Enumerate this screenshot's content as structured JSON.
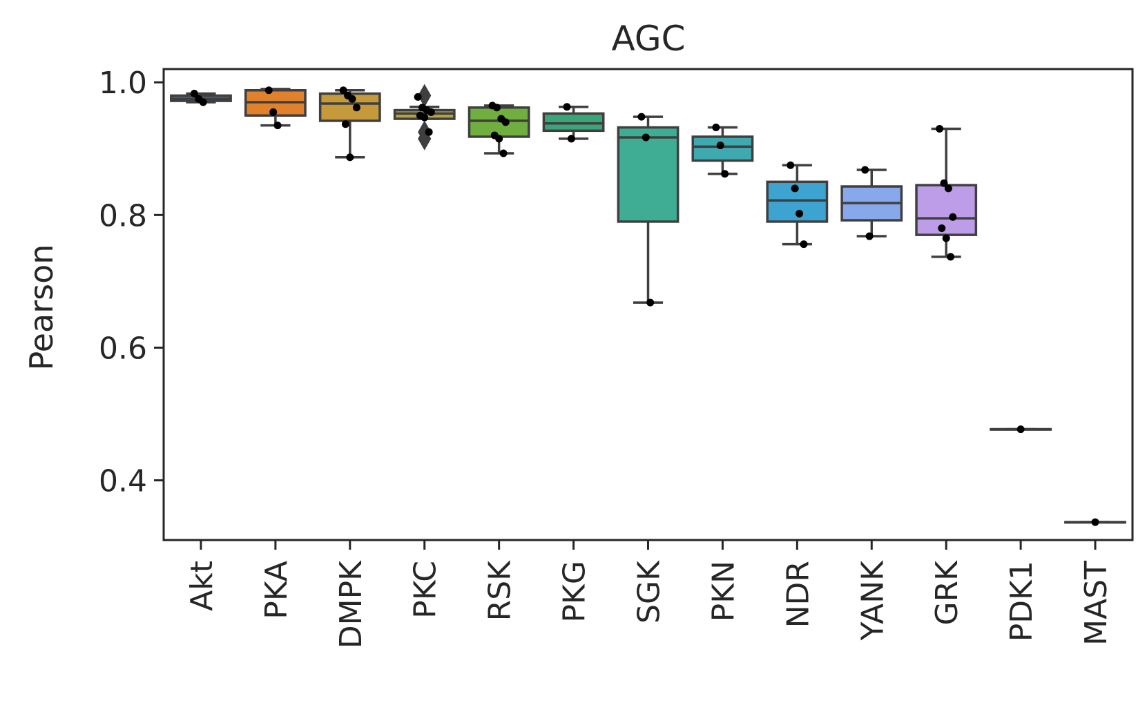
{
  "chart_data": {
    "type": "box",
    "title": "AGC",
    "xlabel": "",
    "ylabel": "Pearson",
    "ylim": [
      0.31,
      1.02
    ],
    "yticks": [
      0.4,
      0.6,
      0.8,
      1.0
    ],
    "ytick_labels": [
      "0.4",
      "0.6",
      "0.8",
      "1.0"
    ],
    "grid": false,
    "legend": "none",
    "categories": [
      "Akt",
      "PKA",
      "DMPK",
      "PKC",
      "RSK",
      "PKG",
      "SGK",
      "PKN",
      "NDR",
      "YANK",
      "GRK",
      "PDK1",
      "MAST"
    ],
    "boxes": [
      {
        "category": "Akt",
        "color": "#3274a1",
        "whisker_low": 0.97,
        "q1": 0.972,
        "median": 0.975,
        "q3": 0.98,
        "whisker_high": 0.983,
        "points": [
          0.983,
          0.975,
          0.97
        ],
        "outliers": []
      },
      {
        "category": "PKA",
        "color": "#e1812c",
        "whisker_low": 0.935,
        "q1": 0.95,
        "median": 0.97,
        "q3": 0.988,
        "whisker_high": 0.99,
        "points": [
          0.988,
          0.955,
          0.935
        ],
        "outliers": []
      },
      {
        "category": "DMPK",
        "color": "#c49a3b",
        "whisker_low": 0.887,
        "q1": 0.942,
        "median": 0.968,
        "q3": 0.983,
        "whisker_high": 0.988,
        "points": [
          0.988,
          0.98,
          0.975,
          0.962,
          0.937,
          0.887
        ],
        "outliers": []
      },
      {
        "category": "PKC",
        "color": "#b5a243",
        "whisker_low": 0.945,
        "q1": 0.945,
        "median": 0.953,
        "q3": 0.958,
        "whisker_high": 0.963,
        "points": [
          0.978,
          0.962,
          0.958,
          0.955,
          0.95,
          0.947,
          0.925
        ],
        "outliers": [
          0.98,
          0.925,
          0.915
        ]
      },
      {
        "category": "RSK",
        "color": "#6fae3f",
        "whisker_low": 0.893,
        "q1": 0.918,
        "median": 0.942,
        "q3": 0.962,
        "whisker_high": 0.965,
        "points": [
          0.965,
          0.962,
          0.945,
          0.94,
          0.92,
          0.915,
          0.893
        ],
        "outliers": []
      },
      {
        "category": "PKG",
        "color": "#3aa578",
        "whisker_low": 0.915,
        "q1": 0.927,
        "median": 0.938,
        "q3": 0.953,
        "whisker_high": 0.963,
        "points": [
          0.963,
          0.915
        ],
        "outliers": []
      },
      {
        "category": "SGK",
        "color": "#3fad93",
        "whisker_low": 0.668,
        "q1": 0.79,
        "median": 0.917,
        "q3": 0.932,
        "whisker_high": 0.948,
        "points": [
          0.948,
          0.917,
          0.668
        ],
        "outliers": []
      },
      {
        "category": "PKN",
        "color": "#3eaab0",
        "whisker_low": 0.862,
        "q1": 0.882,
        "median": 0.903,
        "q3": 0.918,
        "whisker_high": 0.932,
        "points": [
          0.932,
          0.905,
          0.862
        ],
        "outliers": []
      },
      {
        "category": "NDR",
        "color": "#3da3d0",
        "whisker_low": 0.756,
        "q1": 0.79,
        "median": 0.822,
        "q3": 0.85,
        "whisker_high": 0.875,
        "points": [
          0.875,
          0.84,
          0.802,
          0.756
        ],
        "outliers": []
      },
      {
        "category": "YANK",
        "color": "#87a8ea",
        "whisker_low": 0.768,
        "q1": 0.792,
        "median": 0.818,
        "q3": 0.843,
        "whisker_high": 0.868,
        "points": [
          0.868,
          0.768
        ],
        "outliers": []
      },
      {
        "category": "GRK",
        "color": "#bd9ce8",
        "whisker_low": 0.737,
        "q1": 0.77,
        "median": 0.795,
        "q3": 0.845,
        "whisker_high": 0.93,
        "points": [
          0.93,
          0.848,
          0.84,
          0.797,
          0.78,
          0.765,
          0.737
        ],
        "outliers": []
      },
      {
        "category": "PDK1",
        "color": "#e48fd8",
        "whisker_low": 0.477,
        "q1": 0.477,
        "median": 0.477,
        "q3": 0.477,
        "whisker_high": 0.477,
        "points": [
          0.477
        ],
        "outliers": []
      },
      {
        "category": "MAST",
        "color": "#e88fb8",
        "whisker_low": 0.337,
        "q1": 0.337,
        "median": 0.337,
        "q3": 0.337,
        "whisker_high": 0.337,
        "points": [
          0.337
        ],
        "outliers": []
      }
    ]
  }
}
